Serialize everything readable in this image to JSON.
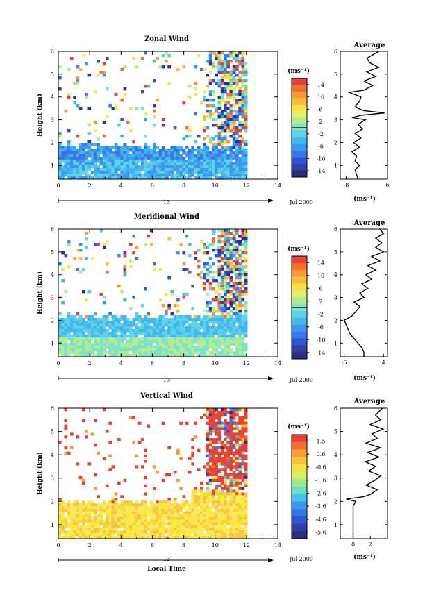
{
  "figure": {
    "x_axis_label": "Local Time",
    "date_label": "Jul 2000",
    "day_marker": "13"
  },
  "chart_data": [
    {
      "type": "heatmap",
      "title": "Zonal Wind",
      "ylabel": "Height (km)",
      "xlim": [
        0,
        14
      ],
      "ylim": [
        0.4,
        6
      ],
      "x_ticks": [
        "0",
        "2",
        "4",
        "6",
        "8",
        "10",
        "12",
        "14"
      ],
      "y_ticks": [
        "1",
        "2",
        "3",
        "4",
        "5",
        "6"
      ],
      "colorbar": {
        "unit": "(ms⁻¹)",
        "ticks": [
          "14",
          "10",
          "6",
          "2",
          "-2",
          "-6",
          "-10",
          "-14"
        ],
        "range": [
          -16,
          16
        ],
        "zero_line": 0
      },
      "average_profile": {
        "title": "Average",
        "unit": "(ms⁻¹)",
        "xlim": [
          -10,
          6
        ],
        "x_ticks": [
          "-8",
          "6"
        ],
        "y_ticks": [
          "1",
          "2",
          "3",
          "4",
          "5",
          "6"
        ],
        "heights": [
          0.4,
          0.6,
          0.8,
          1.0,
          1.2,
          1.4,
          1.6,
          1.8,
          2.0,
          2.2,
          2.4,
          2.6,
          2.8,
          3.0,
          3.1,
          3.2,
          3.3,
          3.4,
          3.5,
          3.6,
          3.8,
          4.0,
          4.2,
          4.3,
          4.5,
          4.7,
          4.9,
          5.1,
          5.3,
          5.5,
          5.7,
          6.0
        ],
        "values": [
          -4,
          -4.5,
          -5,
          -3.5,
          -5,
          -4.5,
          -6,
          -3.5,
          -5.5,
          -3,
          -5,
          -2.5,
          -4,
          -1.5,
          -6,
          -3,
          5,
          -2,
          -4,
          -5,
          -3.5,
          -3,
          -7,
          -2,
          1,
          -2,
          2,
          -1,
          3,
          0,
          -1,
          3
        ]
      }
    },
    {
      "type": "heatmap",
      "title": "Meridional Wind",
      "ylabel": "Height (km)",
      "xlim": [
        0,
        14
      ],
      "ylim": [
        0.4,
        6
      ],
      "x_ticks": [
        "0",
        "2",
        "4",
        "6",
        "8",
        "10",
        "12",
        "14"
      ],
      "y_ticks": [
        "1",
        "2",
        "3",
        "4",
        "5",
        "6"
      ],
      "colorbar": {
        "unit": "(ms⁻¹)",
        "ticks": [
          "14",
          "10",
          "6",
          "2",
          "-2",
          "-6",
          "-10",
          "-14"
        ],
        "range": [
          -16,
          16
        ],
        "zero_line": 0
      },
      "average_profile": {
        "title": "Average",
        "unit": "(ms⁻¹)",
        "xlim": [
          -7,
          5
        ],
        "x_ticks": [
          "-6",
          "4"
        ],
        "y_ticks": [
          "1",
          "2",
          "3",
          "4",
          "5",
          "6"
        ],
        "heights": [
          0.4,
          0.6,
          0.8,
          1.0,
          1.2,
          1.4,
          1.6,
          1.8,
          2.0,
          2.2,
          2.4,
          2.6,
          2.8,
          3.0,
          3.2,
          3.4,
          3.6,
          3.8,
          4.0,
          4.2,
          4.4,
          4.6,
          4.8,
          5.0,
          5.2,
          5.4,
          5.6,
          5.8,
          6.0
        ],
        "values": [
          -1,
          -1,
          -1.5,
          -2.5,
          -3.5,
          -4.5,
          -5,
          -5.5,
          -6,
          -4,
          -3,
          -2,
          -3.5,
          -1,
          -2,
          0,
          -1.5,
          1,
          -0.5,
          2,
          0,
          3,
          1,
          4,
          2,
          3.5,
          2,
          4,
          3
        ]
      }
    },
    {
      "type": "heatmap",
      "title": "Vertical Wind",
      "ylabel": "Height (km)",
      "xlim": [
        0,
        14
      ],
      "ylim": [
        0.4,
        6
      ],
      "x_ticks": [
        "0",
        "2",
        "4",
        "6",
        "8",
        "10",
        "12",
        "14"
      ],
      "y_ticks": [
        "1",
        "2",
        "3",
        "4",
        "5",
        "6"
      ],
      "colorbar": {
        "unit": "(ms⁻¹)",
        "ticks": [
          "1.5",
          "0.6",
          "-0.6",
          "-1.6",
          "-2.6",
          "-3.6",
          "-4.6",
          "-5.6"
        ],
        "range": [
          -6,
          2
        ]
      },
      "average_profile": {
        "title": "Average",
        "unit": "(ms⁻¹)",
        "xlim": [
          -1.5,
          4
        ],
        "x_ticks": [
          "0",
          "2"
        ],
        "y_ticks": [
          "1",
          "2",
          "3",
          "4",
          "5",
          "6"
        ],
        "heights": [
          0.4,
          0.6,
          0.8,
          1.0,
          1.2,
          1.4,
          1.6,
          1.8,
          2.0,
          2.1,
          2.2,
          2.3,
          2.5,
          2.7,
          2.9,
          3.1,
          3.3,
          3.5,
          3.7,
          3.9,
          4.1,
          4.3,
          4.5,
          4.7,
          4.9,
          5.1,
          5.3,
          5.5,
          5.7,
          6.0
        ],
        "values": [
          0,
          0,
          0,
          0,
          0,
          0,
          0,
          0,
          0.3,
          -0.8,
          1.2,
          2.0,
          2.8,
          1.5,
          2.5,
          3.2,
          1.8,
          2.6,
          1.4,
          3.0,
          1.7,
          3.2,
          1.5,
          2.8,
          2.2,
          3.5,
          2.0,
          3.2,
          2.6,
          3.4
        ]
      }
    }
  ]
}
